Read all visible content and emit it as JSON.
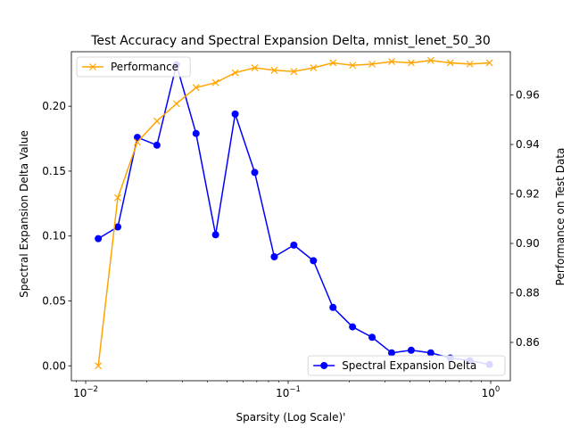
{
  "chart_data": {
    "type": "line",
    "title": "Test Accuracy and Spectral Expansion Delta, mnist_lenet_50_30",
    "xlabel": "Sparsity (Log Scale)'",
    "ylabel_left": "Spectral Expansion Delta Value",
    "ylabel_right": "Performance on Test Data",
    "xscale": "log",
    "xlim": [
      0.0085,
      1.25
    ],
    "ylim_left": [
      -0.0115,
      0.242
    ],
    "ylim_right": [
      0.8445,
      0.9775
    ],
    "grid": false,
    "x_ticks": [
      {
        "base": "10",
        "exp": "−2",
        "value": 0.01
      },
      {
        "base": "10",
        "exp": "−1",
        "value": 0.1
      },
      {
        "base": "10",
        "exp": "0",
        "value": 1
      }
    ],
    "y_ticks_left": [
      "0.00",
      "0.05",
      "0.10",
      "0.15",
      "0.20"
    ],
    "y_ticks_right": [
      "0.86",
      "0.88",
      "0.90",
      "0.92",
      "0.94",
      "0.96"
    ],
    "x": [
      0.01154,
      0.01441,
      0.018,
      0.02248,
      0.02808,
      0.03508,
      0.04381,
      0.05472,
      0.06835,
      0.08538,
      0.10665,
      0.13321,
      0.16639,
      0.20783,
      0.25959,
      0.32425,
      0.40502,
      0.5059,
      0.6319,
      0.7893,
      0.9859
    ],
    "series": [
      {
        "name": "Spectral Expansion Delta",
        "axis": "left",
        "color": "#0000ff",
        "marker": "circle",
        "legend": "lower-right",
        "values": [
          0.098,
          0.107,
          0.176,
          0.17,
          0.232,
          0.179,
          0.101,
          0.194,
          0.149,
          0.084,
          0.093,
          0.081,
          0.045,
          0.03,
          0.022,
          0.01,
          0.012,
          0.01,
          0.006,
          0.004,
          0.001
        ]
      },
      {
        "name": "Performance",
        "axis": "right",
        "color": "#ffa500",
        "marker": "x",
        "legend": "upper-left",
        "values": [
          0.8505,
          0.9185,
          0.941,
          0.9495,
          0.9565,
          0.963,
          0.965,
          0.969,
          0.971,
          0.97,
          0.9695,
          0.971,
          0.973,
          0.972,
          0.9725,
          0.9735,
          0.973,
          0.974,
          0.973,
          0.9725,
          0.973
        ]
      }
    ]
  }
}
